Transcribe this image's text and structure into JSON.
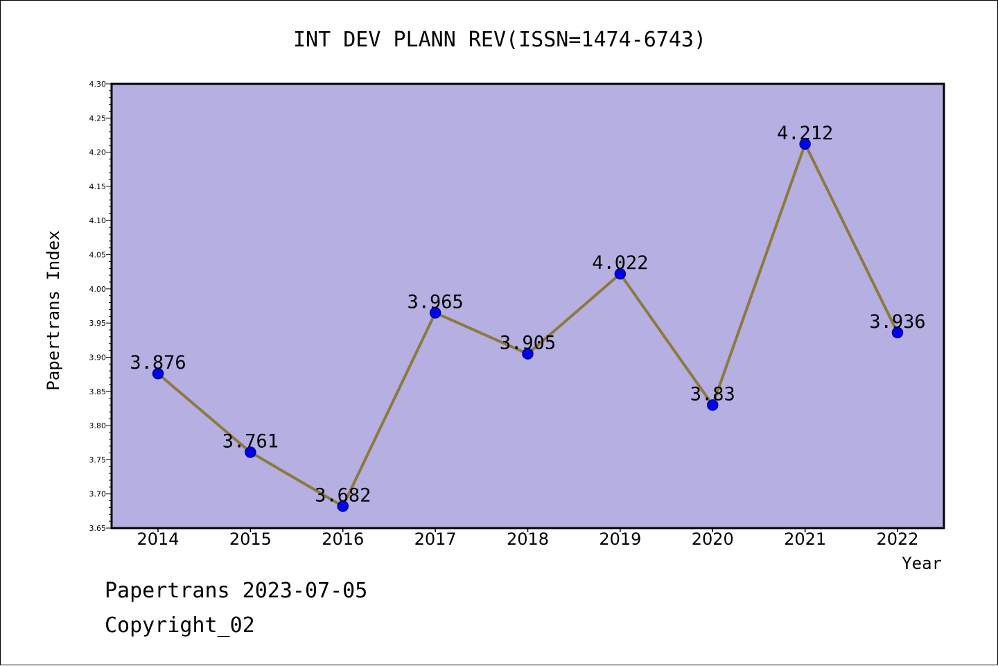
{
  "chart_data": {
    "type": "line",
    "title": "INT DEV PLANN REV(ISSN=1474-6743)",
    "xlabel": "Year",
    "ylabel": "Papertrans Index",
    "categories": [
      "2014",
      "2015",
      "2016",
      "2017",
      "2018",
      "2019",
      "2020",
      "2021",
      "2022"
    ],
    "values": [
      3.876,
      3.761,
      3.682,
      3.965,
      3.905,
      4.022,
      3.83,
      4.212,
      3.936
    ],
    "data_labels": [
      "3.876",
      "3.761",
      "3.682",
      "3.965",
      "3.905",
      "4.022",
      "3.83",
      "4.212",
      "3.936"
    ],
    "ylim": [
      3.65,
      4.3
    ],
    "yticks": [
      "3.65",
      "3.70",
      "3.75",
      "3.80",
      "3.85",
      "3.90",
      "3.95",
      "4.00",
      "4.05",
      "4.10",
      "4.15",
      "4.20",
      "4.25",
      "4.30"
    ],
    "grid": false,
    "colors": {
      "plot_background": "#b5afe2",
      "line": "#8c7a3c",
      "marker": "#0000ee",
      "marker_edge": "#00008b"
    }
  },
  "footer": {
    "line1": "Papertrans 2023-07-05",
    "line2": "Copyright_02"
  }
}
